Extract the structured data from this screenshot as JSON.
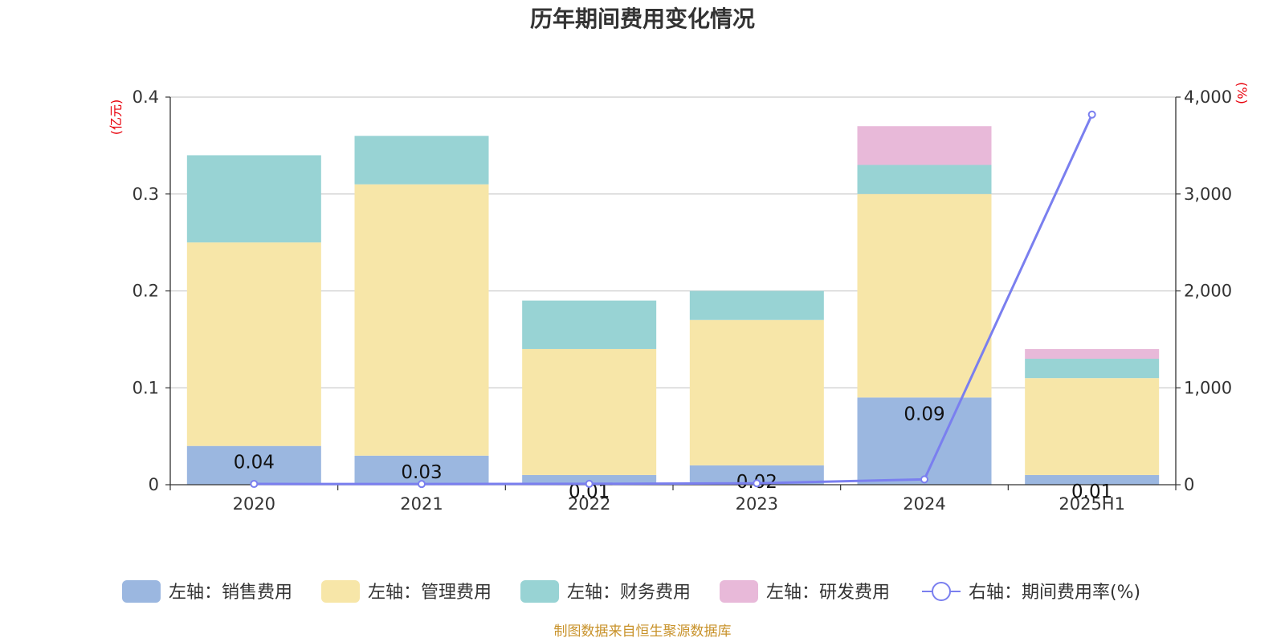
{
  "chart_data": {
    "type": "bar",
    "title": "历年期间费用变化情况",
    "categories": [
      "2020",
      "2021",
      "2022",
      "2023",
      "2024",
      "2025H1"
    ],
    "ylabel": "(亿元)",
    "ylabel_right": "(%)",
    "ylim": [
      0,
      0.4
    ],
    "yticks": [
      "0",
      "0.1",
      "0.2",
      "0.3",
      "0.4"
    ],
    "ylim_right": [
      0,
      4000
    ],
    "yticks_right": [
      "0",
      "1,000",
      "2,000",
      "3,000",
      "4,000"
    ],
    "stacked": true,
    "grid": true,
    "legend_position": "bottom",
    "series": [
      {
        "name": "左轴：销售费用",
        "axis": "left",
        "type": "bar",
        "color": "#9bb7e0",
        "values": [
          0.04,
          0.03,
          0.01,
          0.02,
          0.09,
          0.01
        ],
        "labels": [
          "0.04",
          "0.03",
          "0.01",
          "0.02",
          "0.09",
          "0.01"
        ]
      },
      {
        "name": "左轴：管理费用",
        "axis": "left",
        "type": "bar",
        "color": "#f7e6a8",
        "values": [
          0.21,
          0.28,
          0.13,
          0.15,
          0.21,
          0.1
        ]
      },
      {
        "name": "左轴：财务费用",
        "axis": "left",
        "type": "bar",
        "color": "#98d3d4",
        "values": [
          0.09,
          0.05,
          0.05,
          0.03,
          0.03,
          0.02
        ]
      },
      {
        "name": "左轴：研发费用",
        "axis": "left",
        "type": "bar",
        "color": "#e8b9d9",
        "values": [
          0,
          0,
          0,
          0,
          0.04,
          0.01
        ]
      },
      {
        "name": "右轴：期间费用率(%)",
        "axis": "right",
        "type": "line",
        "color": "#7a7fef",
        "values": [
          8,
          7,
          9,
          15,
          55,
          3820
        ]
      }
    ]
  },
  "source_note": "制图数据来自恒生聚源数据库"
}
